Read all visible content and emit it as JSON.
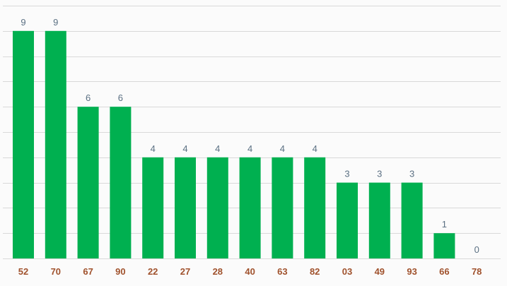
{
  "chart_data": {
    "type": "bar",
    "categories": [
      "52",
      "70",
      "67",
      "90",
      "22",
      "27",
      "28",
      "40",
      "63",
      "82",
      "03",
      "49",
      "93",
      "66",
      "78"
    ],
    "values": [
      9,
      9,
      6,
      6,
      4,
      4,
      4,
      4,
      4,
      4,
      3,
      3,
      3,
      1,
      0
    ],
    "ylim": [
      0,
      10
    ],
    "grid": true,
    "bar_color": "#00b050",
    "value_label_color": "#5b7083",
    "category_label_color": "#a0522d",
    "grid_color": "#d9d9d9"
  }
}
